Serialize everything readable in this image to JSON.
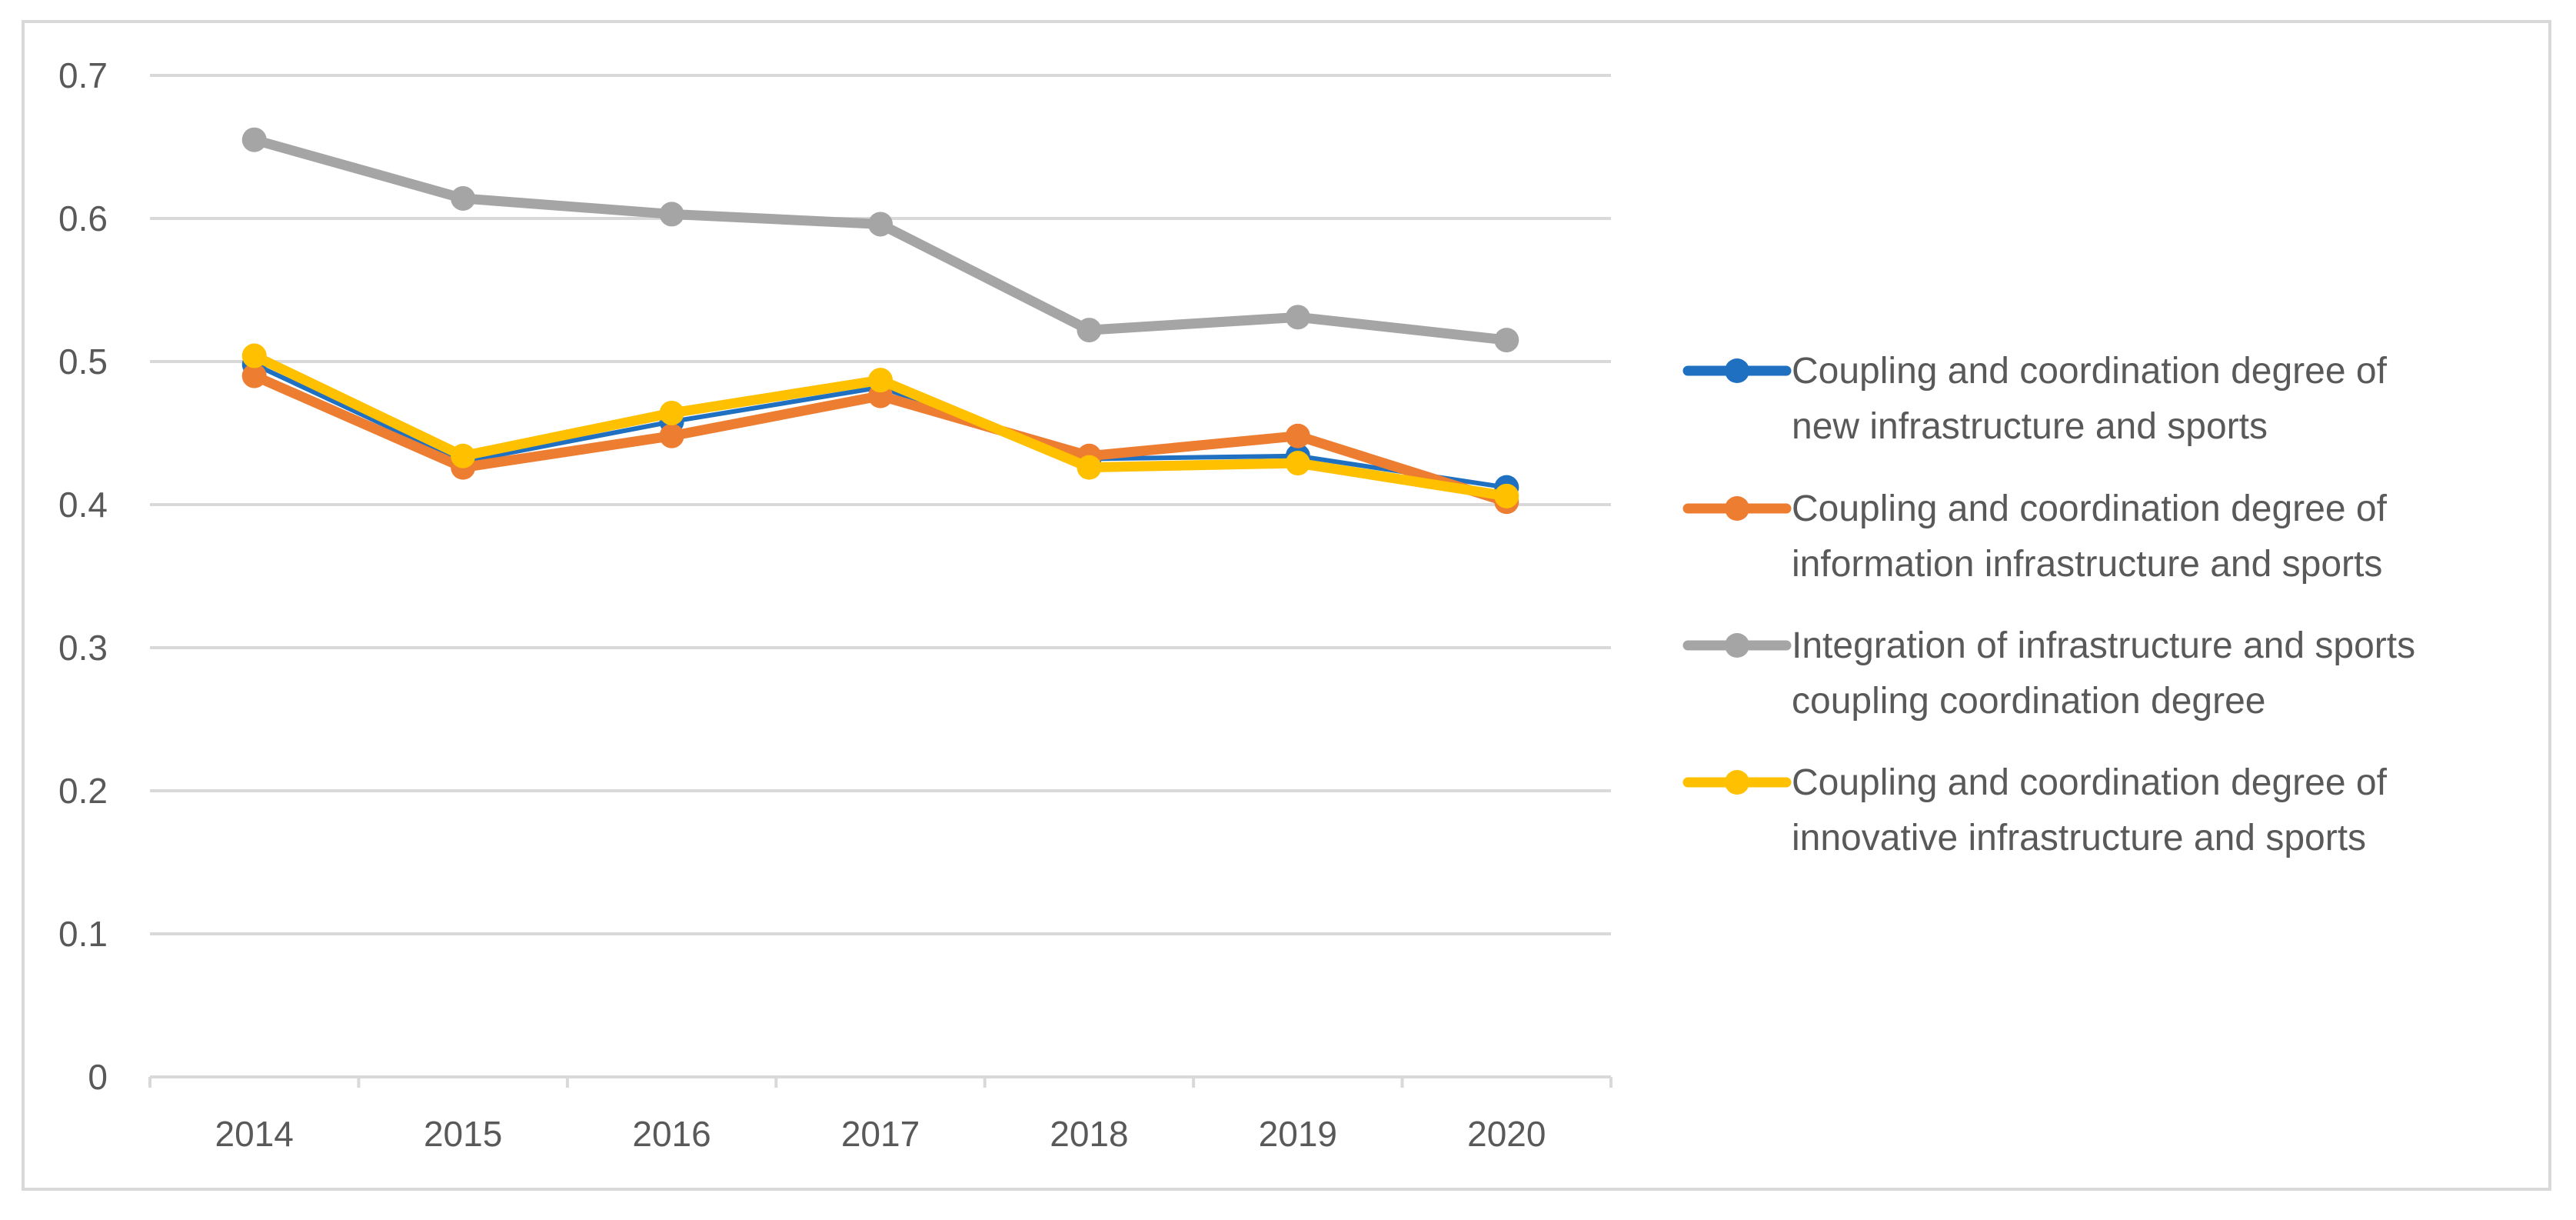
{
  "chart_data": {
    "type": "line",
    "title": "",
    "xlabel": "",
    "ylabel": "",
    "x": [
      "2014",
      "2015",
      "2016",
      "2017",
      "2018",
      "2019",
      "2020"
    ],
    "ylim": [
      0,
      0.7
    ],
    "yticks": [
      0,
      0.1,
      0.2,
      0.3,
      0.4,
      0.5,
      0.6,
      0.7
    ],
    "ytick_labels": [
      "0",
      "0.1",
      "0.2",
      "0.3",
      "0.4",
      "0.5",
      "0.6",
      "0.7"
    ],
    "grid": "horizontal",
    "legend_position": "right",
    "series": [
      {
        "name": "Coupling and coordination degree of new infrastructure and sports",
        "legend_lines": [
          "Coupling and coordination degree of",
          "new infrastructure and sports"
        ],
        "color": "#1f70c1",
        "stroke": "thin",
        "values": [
          0.498,
          0.43,
          0.458,
          0.482,
          0.432,
          0.434,
          0.412
        ]
      },
      {
        "name": "Coupling and coordination degree of information infrastructure and sports",
        "legend_lines": [
          "Coupling and coordination degree of",
          "information infrastructure and sports"
        ],
        "color": "#ed7d31",
        "stroke": "thick",
        "values": [
          0.49,
          0.426,
          0.448,
          0.476,
          0.434,
          0.448,
          0.402
        ]
      },
      {
        "name": "Integration of infrastructure and sports coupling coordination degree",
        "legend_lines": [
          "Integration of infrastructure and sports",
          "coupling coordination degree"
        ],
        "color": "#a5a5a5",
        "stroke": "thick",
        "values": [
          0.655,
          0.614,
          0.603,
          0.596,
          0.522,
          0.531,
          0.515
        ]
      },
      {
        "name": "Coupling and coordination degree of innovative infrastructure and sports",
        "legend_lines": [
          "Coupling and coordination degree of",
          "innovative infrastructure and sports"
        ],
        "color": "#ffc000",
        "stroke": "thick",
        "values": [
          0.504,
          0.434,
          0.464,
          0.487,
          0.426,
          0.429,
          0.406
        ]
      }
    ]
  }
}
